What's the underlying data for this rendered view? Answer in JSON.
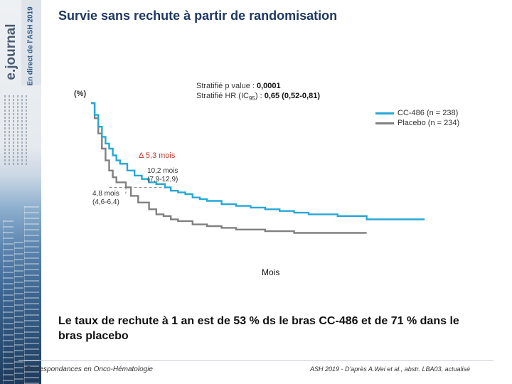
{
  "sidebar": {
    "logo": "e.journal",
    "tagline": "En direct de l'ASH 2019"
  },
  "slide": {
    "title": "Survie sans rechute à partir de randomisation",
    "conclusion": "Le taux de rechute à 1 an est de 53 % ds le bras CC-486  et de 71 % dans le bras placebo",
    "footer_left": "Correspondances en Onco-Hématologie",
    "footer_right": "ASH 2019 - D'après A.Wei et al., abstr. LBA03, actualisé"
  },
  "stats": {
    "p_label": "Stratifié p value :",
    "p_value": "0,0001",
    "hr_label": "Stratifié HR (IC",
    "hr_sub": "95",
    "hr_colon": ") :",
    "hr_value": "0,65 (0,52-0,81)"
  },
  "chart_data": {
    "type": "line",
    "title": "Survie sans rechute à partir de randomisation",
    "ylabel": "(%)",
    "xlabel": "Mois",
    "xlim": [
      0,
      48
    ],
    "ylim": [
      0,
      100
    ],
    "grid": false,
    "legend_position": "top-right",
    "series": [
      {
        "name": "CC-486 (n = 238)",
        "color": "#27a7d6",
        "x": [
          0,
          0.5,
          1,
          1.5,
          2,
          2.5,
          3,
          3.5,
          4,
          5,
          6,
          7,
          8,
          9,
          10.2,
          11,
          12,
          13,
          14,
          15,
          16,
          18,
          20,
          22,
          24,
          26,
          28,
          30,
          32,
          34,
          35.5,
          38,
          40,
          42,
          44,
          46
        ],
        "y": [
          100,
          93,
          86,
          80,
          76,
          73,
          69,
          66,
          64,
          60,
          57,
          55,
          53,
          52,
          50,
          48,
          47,
          46,
          44,
          43,
          42,
          40,
          39,
          38,
          37,
          36,
          35,
          34,
          34,
          33,
          33,
          31,
          31,
          31,
          31,
          31
        ]
      },
      {
        "name": "Placebo (n = 234)",
        "color": "#808080",
        "x": [
          0,
          0.5,
          1,
          1.5,
          2,
          2.5,
          3,
          3.5,
          4.8,
          5.5,
          6.5,
          8,
          9,
          10,
          11,
          12,
          14,
          16,
          18,
          20,
          22,
          24,
          26,
          28,
          30,
          32,
          34,
          36,
          38
        ],
        "y": [
          100,
          91,
          82,
          73,
          66,
          60,
          56,
          53,
          50,
          45,
          41,
          37,
          34,
          33,
          31,
          30,
          28,
          27,
          26,
          25,
          25,
          24,
          24,
          23,
          23,
          23,
          23,
          23,
          23
        ]
      }
    ],
    "median_annotations": [
      {
        "label": "4,8 mois",
        "ci": "(4,6-6,4)",
        "x": 4.8,
        "y": 50
      },
      {
        "label": "10,2 mois",
        "ci": "(7,9-12,9)",
        "x": 10.2,
        "y": 50
      }
    ],
    "delta_label": "Δ 5,3 mois"
  }
}
